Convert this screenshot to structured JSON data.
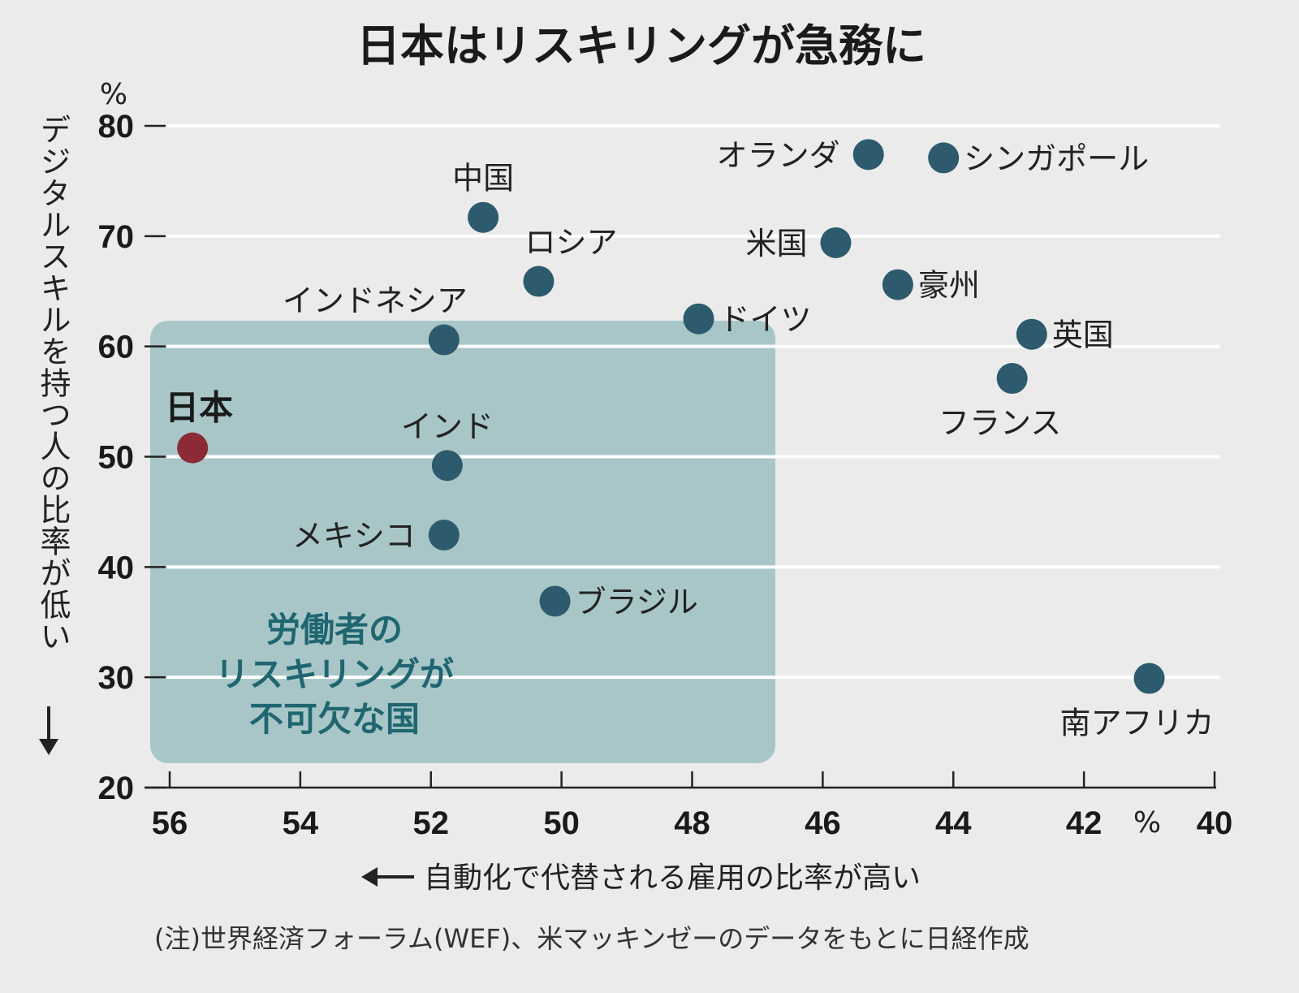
{
  "chart_data": {
    "type": "scatter",
    "title": "日本はリスキリングが急務に",
    "xlabel": "自動化で代替される雇用の比率が高い",
    "ylabel": "デジタルスキルを持つ人の比率が低い",
    "x_unit": "%",
    "y_unit": "%",
    "xlim": [
      56,
      40
    ],
    "ylim": [
      20,
      80
    ],
    "x_reversed": true,
    "x_ticks": [
      "56",
      "54",
      "52",
      "50",
      "48",
      "46",
      "44",
      "42",
      "40"
    ],
    "y_ticks": [
      "20",
      "30",
      "40",
      "50",
      "60",
      "70",
      "80"
    ],
    "grid": "horizontal",
    "highlight_region": {
      "label_lines": [
        "労働者の",
        "リスキリングが",
        "不可欠な国"
      ],
      "x_range": [
        56.3,
        46.7
      ],
      "y_range": [
        23,
        63
      ]
    },
    "points": [
      {
        "name": "日本",
        "x": 55.65,
        "y": 50.8,
        "highlight": true,
        "label_pos": "above"
      },
      {
        "name": "中国",
        "x": 51.2,
        "y": 71.7,
        "label_pos": "above"
      },
      {
        "name": "ロシア",
        "x": 50.35,
        "y": 65.9,
        "label_pos": "above-right"
      },
      {
        "name": "インドネシア",
        "x": 51.8,
        "y": 60.6,
        "label_pos": "above-left"
      },
      {
        "name": "インド",
        "x": 51.75,
        "y": 49.2,
        "label_pos": "above"
      },
      {
        "name": "メキシコ",
        "x": 51.8,
        "y": 42.9,
        "label_pos": "left"
      },
      {
        "name": "ブラジル",
        "x": 50.1,
        "y": 36.9,
        "label_pos": "right"
      },
      {
        "name": "ドイツ",
        "x": 47.9,
        "y": 62.5,
        "label_pos": "right"
      },
      {
        "name": "オランダ",
        "x": 45.3,
        "y": 77.4,
        "label_pos": "left"
      },
      {
        "name": "シンガポール",
        "x": 44.15,
        "y": 77.1,
        "label_pos": "right"
      },
      {
        "name": "米国",
        "x": 45.8,
        "y": 69.4,
        "label_pos": "left"
      },
      {
        "name": "豪州",
        "x": 44.85,
        "y": 65.6,
        "label_pos": "right"
      },
      {
        "name": "英国",
        "x": 42.8,
        "y": 61.1,
        "label_pos": "right"
      },
      {
        "name": "フランス",
        "x": 43.1,
        "y": 57.1,
        "label_pos": "below"
      },
      {
        "name": "南アフリカ",
        "x": 41.0,
        "y": 29.9,
        "label_pos": "below"
      }
    ],
    "colors": {
      "point": "#2d5a6c",
      "highlight": "#8c2a36",
      "region": "#a8c6c7",
      "region_text": "#1f6670",
      "grid": "#ffffff"
    }
  },
  "note": "(注)世界経済フォーラム(WEF)、米マッキンゼーのデータをもとに日経作成"
}
